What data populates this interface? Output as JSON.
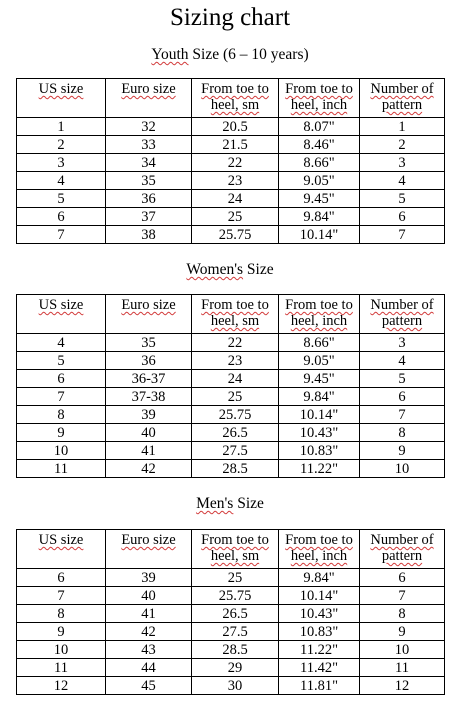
{
  "title": "Sizing chart",
  "headers": {
    "us_size": "US size",
    "euro_size": "Euro size",
    "toe_heel_sm_1": "From toe to",
    "toe_heel_sm_2": "heel, sm",
    "toe_heel_inch_1": "From toe to",
    "toe_heel_inch_2": "heel, inch",
    "pattern_1": "Number of",
    "pattern_2": "pattern"
  },
  "sections": [
    {
      "title_pre": "",
      "title_squig": "Youth",
      "title_post": " Size (6 – 10 years)",
      "rows": [
        [
          "1",
          "32",
          "20.5",
          "8.07\"",
          "1"
        ],
        [
          "2",
          "33",
          "21.5",
          "8.46\"",
          "2"
        ],
        [
          "3",
          "34",
          "22",
          "8.66\"",
          "3"
        ],
        [
          "4",
          "35",
          "23",
          "9.05\"",
          "4"
        ],
        [
          "5",
          "36",
          "24",
          "9.45\"",
          "5"
        ],
        [
          "6",
          "37",
          "25",
          "9.84\"",
          "6"
        ],
        [
          "7",
          "38",
          "25.75",
          "10.14\"",
          "7"
        ]
      ]
    },
    {
      "title_pre": "",
      "title_squig": "Women's",
      "title_post": " Size",
      "rows": [
        [
          "4",
          "35",
          "22",
          "8.66\"",
          "3"
        ],
        [
          "5",
          "36",
          "23",
          "9.05\"",
          "4"
        ],
        [
          "6",
          "36-37",
          "24",
          "9.45\"",
          "5"
        ],
        [
          "7",
          "37-38",
          "25",
          "9.84\"",
          "6"
        ],
        [
          "8",
          "39",
          "25.75",
          "10.14\"",
          "7"
        ],
        [
          "9",
          "40",
          "26.5",
          "10.43\"",
          "8"
        ],
        [
          "10",
          "41",
          "27.5",
          "10.83\"",
          "9"
        ],
        [
          "11",
          "42",
          "28.5",
          "11.22\"",
          "10"
        ]
      ]
    },
    {
      "title_pre": "",
      "title_squig": "Men's",
      "title_post": " Size",
      "rows": [
        [
          "6",
          "39",
          "25",
          "9.84\"",
          "6"
        ],
        [
          "7",
          "40",
          "25.75",
          "10.14\"",
          "7"
        ],
        [
          "8",
          "41",
          "26.5",
          "10.43\"",
          "8"
        ],
        [
          "9",
          "42",
          "27.5",
          "10.83\"",
          "9"
        ],
        [
          "10",
          "43",
          "28.5",
          "11.22\"",
          "10"
        ],
        [
          "11",
          "44",
          "29",
          "11.42\"",
          "11"
        ],
        [
          "12",
          "45",
          "30",
          "11.81\"",
          "12"
        ]
      ]
    }
  ]
}
